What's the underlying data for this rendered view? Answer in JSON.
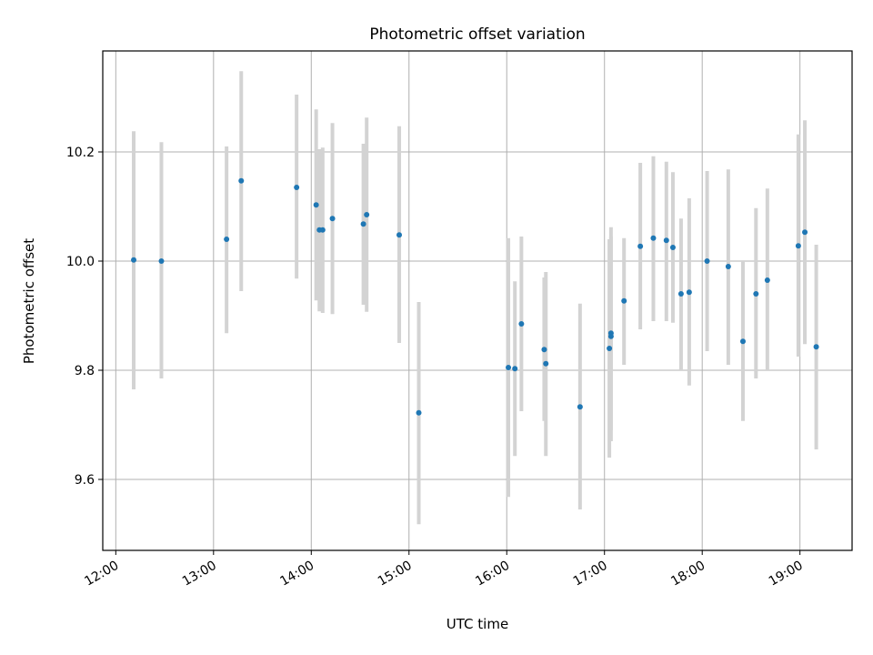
{
  "chart_data": {
    "type": "scatter",
    "title": "Photometric offset variation",
    "xlabel": "UTC time",
    "ylabel": "Photometric offset",
    "xlim": [
      "11:52",
      "19:32"
    ],
    "ylim": [
      9.47,
      10.385
    ],
    "xticks": [
      "12:00",
      "13:00",
      "14:00",
      "15:00",
      "16:00",
      "17:00",
      "18:00",
      "19:00"
    ],
    "yticks": [
      9.6,
      9.8,
      10.0,
      10.2
    ],
    "grid": true,
    "colors": {
      "points": "#1f77b4",
      "errorbars": "#d3d3d3",
      "grid": "#b0b0b0"
    },
    "series": [
      {
        "points": [
          {
            "x": "12:11",
            "y": 10.002,
            "lo": 9.765,
            "hi": 10.238
          },
          {
            "x": "12:28",
            "y": 10.0,
            "lo": 9.785,
            "hi": 10.218
          },
          {
            "x": "13:08",
            "y": 10.04,
            "lo": 9.868,
            "hi": 10.21
          },
          {
            "x": "13:17",
            "y": 10.147,
            "lo": 9.945,
            "hi": 10.348
          },
          {
            "x": "13:51",
            "y": 10.135,
            "lo": 9.968,
            "hi": 10.305
          },
          {
            "x": "14:03",
            "y": 10.103,
            "lo": 9.928,
            "hi": 10.278
          },
          {
            "x": "14:05",
            "y": 10.057,
            "lo": 9.908,
            "hi": 10.205
          },
          {
            "x": "14:07",
            "y": 10.057,
            "lo": 9.905,
            "hi": 10.208
          },
          {
            "x": "14:13",
            "y": 10.078,
            "lo": 9.903,
            "hi": 10.253
          },
          {
            "x": "14:32",
            "y": 10.068,
            "lo": 9.92,
            "hi": 10.215
          },
          {
            "x": "14:34",
            "y": 10.085,
            "lo": 9.907,
            "hi": 10.263
          },
          {
            "x": "14:54",
            "y": 10.048,
            "lo": 9.85,
            "hi": 10.247
          },
          {
            "x": "15:06",
            "y": 9.722,
            "lo": 9.518,
            "hi": 9.925
          },
          {
            "x": "16:01",
            "y": 9.805,
            "lo": 9.568,
            "hi": 10.042
          },
          {
            "x": "16:05",
            "y": 9.803,
            "lo": 9.643,
            "hi": 9.963
          },
          {
            "x": "16:09",
            "y": 9.885,
            "lo": 9.725,
            "hi": 10.045
          },
          {
            "x": "16:23",
            "y": 9.838,
            "lo": 9.707,
            "hi": 9.97
          },
          {
            "x": "16:24",
            "y": 9.812,
            "lo": 9.643,
            "hi": 9.98
          },
          {
            "x": "16:45",
            "y": 9.733,
            "lo": 9.545,
            "hi": 9.922
          },
          {
            "x": "17:03",
            "y": 9.84,
            "lo": 9.64,
            "hi": 10.04
          },
          {
            "x": "17:04",
            "y": 9.862,
            "lo": 9.67,
            "hi": 10.062
          },
          {
            "x": "17:04",
            "y": 9.868,
            "lo": 9.69,
            "hi": 10.045
          },
          {
            "x": "17:12",
            "y": 9.927,
            "lo": 9.81,
            "hi": 10.042
          },
          {
            "x": "17:22",
            "y": 10.027,
            "lo": 9.875,
            "hi": 10.18
          },
          {
            "x": "17:30",
            "y": 10.042,
            "lo": 9.89,
            "hi": 10.192
          },
          {
            "x": "17:38",
            "y": 10.038,
            "lo": 9.89,
            "hi": 10.182
          },
          {
            "x": "17:42",
            "y": 10.025,
            "lo": 9.887,
            "hi": 10.163
          },
          {
            "x": "17:47",
            "y": 9.94,
            "lo": 9.8,
            "hi": 10.078
          },
          {
            "x": "17:52",
            "y": 9.943,
            "lo": 9.772,
            "hi": 10.115
          },
          {
            "x": "18:03",
            "y": 10.0,
            "lo": 9.835,
            "hi": 10.165
          },
          {
            "x": "18:16",
            "y": 9.99,
            "lo": 9.81,
            "hi": 10.168
          },
          {
            "x": "18:25",
            "y": 9.853,
            "lo": 9.707,
            "hi": 10.0
          },
          {
            "x": "18:33",
            "y": 9.94,
            "lo": 9.785,
            "hi": 10.097
          },
          {
            "x": "18:40",
            "y": 9.965,
            "lo": 9.8,
            "hi": 10.133
          },
          {
            "x": "18:59",
            "y": 10.028,
            "lo": 9.825,
            "hi": 10.232
          },
          {
            "x": "19:03",
            "y": 10.053,
            "lo": 9.848,
            "hi": 10.258
          },
          {
            "x": "19:10",
            "y": 9.843,
            "lo": 9.655,
            "hi": 10.03
          }
        ]
      }
    ]
  }
}
